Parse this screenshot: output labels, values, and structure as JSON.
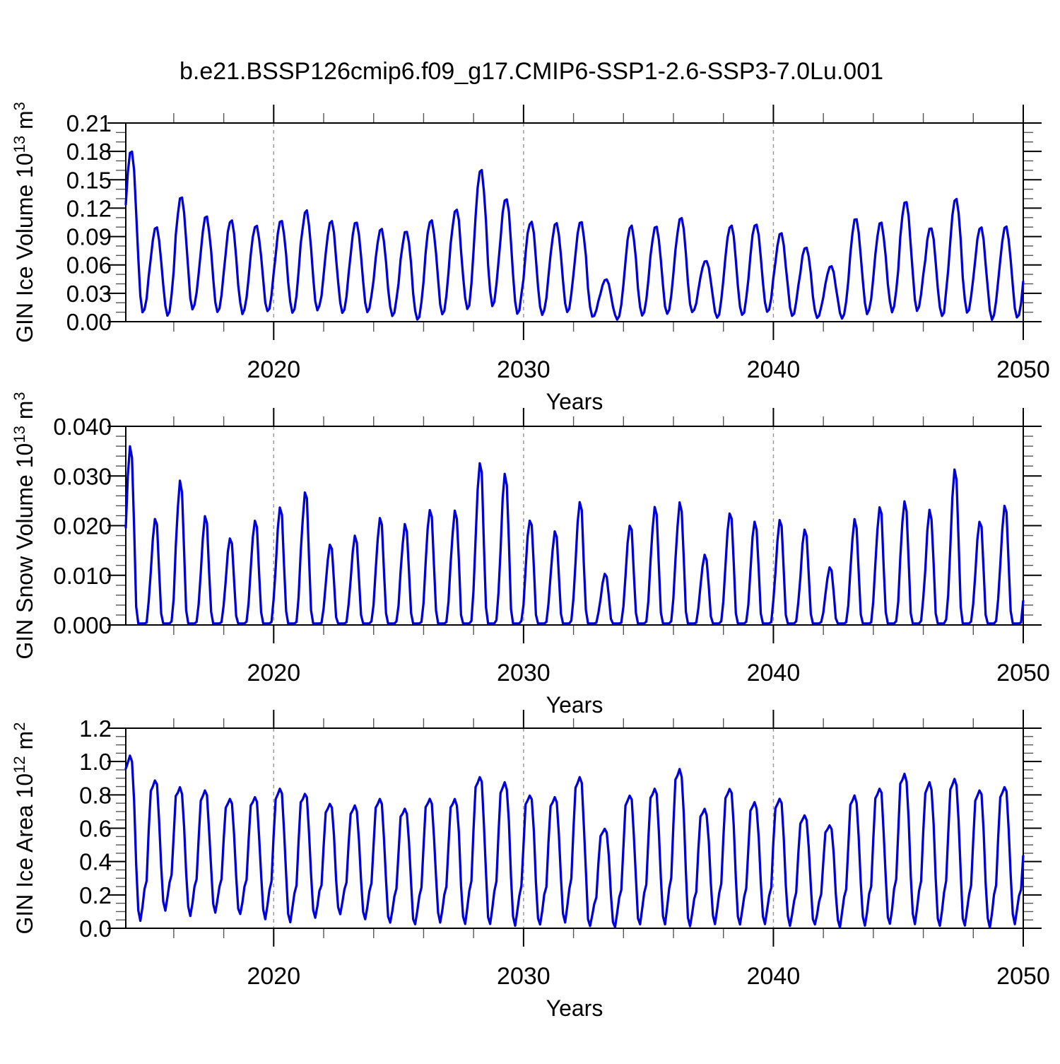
{
  "title": "b.e21.BSSP126cmip6.f09_g17.CMIP6-SSP1-2.6-SSP3-7.0Lu.001",
  "colors": {
    "line": "#0000d8",
    "axis": "#000000",
    "grid_dash": "#9a9a9a",
    "minor_tick": "#555555",
    "text": "#000000",
    "background": "#ffffff"
  },
  "x": {
    "label": "Years",
    "range": [
      2014.08,
      2050
    ],
    "major_ticks": [
      2020,
      2030,
      2040,
      2050
    ],
    "major_tick_labels": [
      "2020",
      "2030",
      "2040",
      "2050"
    ],
    "minor_step_years": 2,
    "dashed_gridlines": [
      2020,
      2030,
      2040
    ]
  },
  "chart_data": [
    {
      "type": "line",
      "name": "gin-ice-volume",
      "ylabel_segments": [
        {
          "text": "GIN Ice Volume 10",
          "sup": false
        },
        {
          "text": "13",
          "sup": true
        },
        {
          "text": " m",
          "sup": false
        },
        {
          "text": "3",
          "sup": true
        }
      ],
      "ylim": [
        0,
        0.21
      ],
      "y_major_step": 0.03,
      "y_minor_step": 0.01,
      "y_tick_labels": [
        "0.00",
        "0.03",
        "0.06",
        "0.09",
        "0.12",
        "0.15",
        "0.18",
        "0.21"
      ],
      "xlabel": "Years",
      "series": {
        "cadence": "monthly",
        "season_shape": "ice_volume",
        "winter_years": [
          2014,
          2015,
          2016,
          2017,
          2018,
          2019,
          2020,
          2021,
          2022,
          2023,
          2024,
          2025,
          2026,
          2027,
          2028,
          2029,
          2030,
          2031,
          2032,
          2033,
          2034,
          2035,
          2036,
          2037,
          2038,
          2039,
          2040,
          2041,
          2042,
          2043,
          2044,
          2045,
          2046,
          2047,
          2048,
          2049
        ],
        "winter_max": [
          0.181,
          0.1,
          0.133,
          0.112,
          0.108,
          0.102,
          0.107,
          0.118,
          0.107,
          0.106,
          0.099,
          0.096,
          0.108,
          0.12,
          0.161,
          0.131,
          0.106,
          0.105,
          0.106,
          0.045,
          0.102,
          0.101,
          0.111,
          0.065,
          0.102,
          0.104,
          0.094,
          0.079,
          0.059,
          0.11,
          0.105,
          0.128,
          0.1,
          0.131,
          0.1,
          0.101
        ],
        "summer_min": [
          0.01,
          0.006,
          0.013,
          0.01,
          0.008,
          0.011,
          0.009,
          0.012,
          0.009,
          0.01,
          0.006,
          0.002,
          0.008,
          0.013,
          0.016,
          0.008,
          0.007,
          0.01,
          0.005,
          0.002,
          0.006,
          0.008,
          0.01,
          0.004,
          0.007,
          0.01,
          0.006,
          0.004,
          0.003,
          0.008,
          0.01,
          0.011,
          0.006,
          0.009,
          0.002,
          0.004
        ]
      }
    },
    {
      "type": "line",
      "name": "gin-snow-volume",
      "ylabel_segments": [
        {
          "text": "GIN Snow Volume 10",
          "sup": false
        },
        {
          "text": "13",
          "sup": true
        },
        {
          "text": " m",
          "sup": false
        },
        {
          "text": "3",
          "sup": true
        }
      ],
      "ylim": [
        0,
        0.04
      ],
      "y_major_step": 0.01,
      "y_minor_step": 0.002,
      "y_tick_labels": [
        "0.000",
        "0.010",
        "0.020",
        "0.030",
        "0.040"
      ],
      "xlabel": "Years",
      "series": {
        "cadence": "monthly",
        "season_shape": "snow_volume",
        "winter_years": [
          2014,
          2015,
          2016,
          2017,
          2018,
          2019,
          2020,
          2021,
          2022,
          2023,
          2024,
          2025,
          2026,
          2027,
          2028,
          2029,
          2030,
          2031,
          2032,
          2033,
          2034,
          2035,
          2036,
          2037,
          2038,
          2039,
          2040,
          2041,
          2042,
          2043,
          2044,
          2045,
          2046,
          2047,
          2048,
          2049
        ],
        "winter_max": [
          0.0363,
          0.0216,
          0.0295,
          0.0222,
          0.0178,
          0.0213,
          0.0239,
          0.0272,
          0.0165,
          0.0182,
          0.022,
          0.0205,
          0.0236,
          0.0236,
          0.0329,
          0.031,
          0.0215,
          0.0192,
          0.025,
          0.0105,
          0.0205,
          0.024,
          0.0252,
          0.0144,
          0.0229,
          0.0212,
          0.0214,
          0.0195,
          0.0118,
          0.0216,
          0.0239,
          0.0252,
          0.0235,
          0.0319,
          0.0211,
          0.0243
        ],
        "summer_min": [
          0.0003,
          0.0003,
          0.0003,
          0.0003,
          0.0003,
          0.0003,
          0.0003,
          0.0003,
          0.0003,
          0.0003,
          0.0003,
          0.0003,
          0.0003,
          0.0003,
          0.0003,
          0.0003,
          0.0003,
          0.0003,
          0.0003,
          0.0003,
          0.0003,
          0.0003,
          0.0003,
          0.0003,
          0.0003,
          0.0003,
          0.0003,
          0.0003,
          0.0003,
          0.0003,
          0.0003,
          0.0003,
          0.0003,
          0.0003,
          0.0003,
          0.0003
        ]
      }
    },
    {
      "type": "line",
      "name": "gin-ice-area",
      "ylabel_segments": [
        {
          "text": "GIN Ice Area 10",
          "sup": false
        },
        {
          "text": "12",
          "sup": true
        },
        {
          "text": " m",
          "sup": false
        },
        {
          "text": "2",
          "sup": true
        }
      ],
      "ylim": [
        0,
        1.2
      ],
      "y_major_step": 0.2,
      "y_minor_step": 0.05,
      "y_tick_labels": [
        "0.0",
        "0.2",
        "0.4",
        "0.6",
        "0.8",
        "1.0",
        "1.2"
      ],
      "xlabel": "Years",
      "series": {
        "cadence": "monthly",
        "season_shape": "ice_area",
        "winter_years": [
          2014,
          2015,
          2016,
          2017,
          2018,
          2019,
          2020,
          2021,
          2022,
          2023,
          2024,
          2025,
          2026,
          2027,
          2028,
          2029,
          2030,
          2031,
          2032,
          2033,
          2034,
          2035,
          2036,
          2037,
          2038,
          2039,
          2040,
          2041,
          2042,
          2043,
          2044,
          2045,
          2046,
          2047,
          2048,
          2049
        ],
        "winter_max": [
          1.04,
          0.89,
          0.85,
          0.83,
          0.78,
          0.79,
          0.84,
          0.81,
          0.75,
          0.74,
          0.78,
          0.72,
          0.78,
          0.78,
          0.91,
          0.88,
          0.8,
          0.79,
          0.91,
          0.6,
          0.8,
          0.84,
          0.96,
          0.72,
          0.84,
          0.76,
          0.78,
          0.68,
          0.62,
          0.8,
          0.84,
          0.93,
          0.88,
          0.9,
          0.83,
          0.85
        ],
        "summer_min": [
          0.04,
          0.1,
          0.07,
          0.09,
          0.08,
          0.05,
          0.03,
          0.06,
          0.08,
          0.05,
          0.03,
          0.02,
          0.03,
          0.02,
          0.02,
          0.01,
          0.02,
          0.03,
          0.01,
          0.0,
          0.02,
          0.02,
          0.01,
          0.02,
          0.02,
          0.02,
          0.01,
          0.02,
          0.0,
          0.01,
          0.02,
          0.02,
          0.01,
          0.01,
          0.0,
          0.02
        ]
      }
    }
  ]
}
